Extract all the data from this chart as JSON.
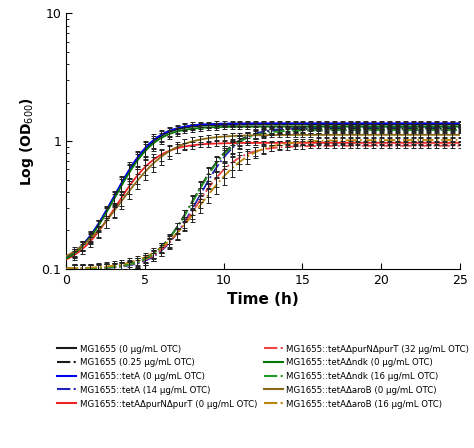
{
  "title": "",
  "xlabel": "Time (h)",
  "ylabel": "Log (OD₆₀₀)",
  "xlim": [
    0,
    25
  ],
  "ylim_log": [
    0.1,
    10
  ],
  "yticks": [
    0.1,
    1,
    10
  ],
  "xticks": [
    0,
    5,
    10,
    15,
    20,
    25
  ],
  "series": [
    {
      "label": "MG1655 (0 μg/mL OTC)",
      "color": "#1a1a1a",
      "linestyle": "solid",
      "lag": 4.5,
      "growth_rate": 0.9,
      "max_od": 1.35,
      "min_od": 0.1
    },
    {
      "label": "MG1655 (0.25 μg/mL OTC)",
      "color": "#1a1a1a",
      "linestyle": "dashdot",
      "lag": 9.5,
      "growth_rate": 0.9,
      "max_od": 1.25,
      "min_od": 0.1
    },
    {
      "label": "MG1655::tetA (0 μg/mL OTC)",
      "color": "#0000ee",
      "linestyle": "solid",
      "lag": 4.5,
      "growth_rate": 0.9,
      "max_od": 1.38,
      "min_od": 0.1
    },
    {
      "label": "MG1655::tetA (14 μg/mL OTC)",
      "color": "#2222bb",
      "linestyle": "dashdot",
      "lag": 9.8,
      "growth_rate": 0.9,
      "max_od": 1.28,
      "min_od": 0.1
    },
    {
      "label": "MG1655::tetAΔpurNΔpurT (0 μg/mL OTC)",
      "color": "#ee2222",
      "linestyle": "solid",
      "lag": 4.5,
      "growth_rate": 0.85,
      "max_od": 0.97,
      "min_od": 0.1
    },
    {
      "label": "MG1655::tetAΔpurNΔpurT (32 μg/mL OTC)",
      "color": "#ee4444",
      "linestyle": "dashdot",
      "lag": 9.5,
      "growth_rate": 0.85,
      "max_od": 0.92,
      "min_od": 0.1
    },
    {
      "label": "MG1655::tetAΔndk (0 μg/mL OTC)",
      "color": "#007700",
      "linestyle": "solid",
      "lag": 4.5,
      "growth_rate": 0.9,
      "max_od": 1.3,
      "min_od": 0.1
    },
    {
      "label": "MG1655::tetAΔndk (16 μg/mL OTC)",
      "color": "#229922",
      "linestyle": "dashdot",
      "lag": 9.5,
      "growth_rate": 0.9,
      "max_od": 1.22,
      "min_od": 0.1
    },
    {
      "label": "MG1655::tetAΔaroB (0 μg/mL OTC)",
      "color": "#8B6914",
      "linestyle": "solid",
      "lag": 5.2,
      "growth_rate": 0.7,
      "max_od": 1.12,
      "min_od": 0.1
    },
    {
      "label": "MG1655::tetAΔaroB (16 μg/mL OTC)",
      "color": "#B8860B",
      "linestyle": "dashdot",
      "lag": 10.2,
      "growth_rate": 0.7,
      "max_od": 1.02,
      "min_od": 0.1
    }
  ],
  "background": "#ffffff",
  "errorbar_color": "#222222",
  "t_start": 0,
  "t_end": 25,
  "t_step": 0.5
}
